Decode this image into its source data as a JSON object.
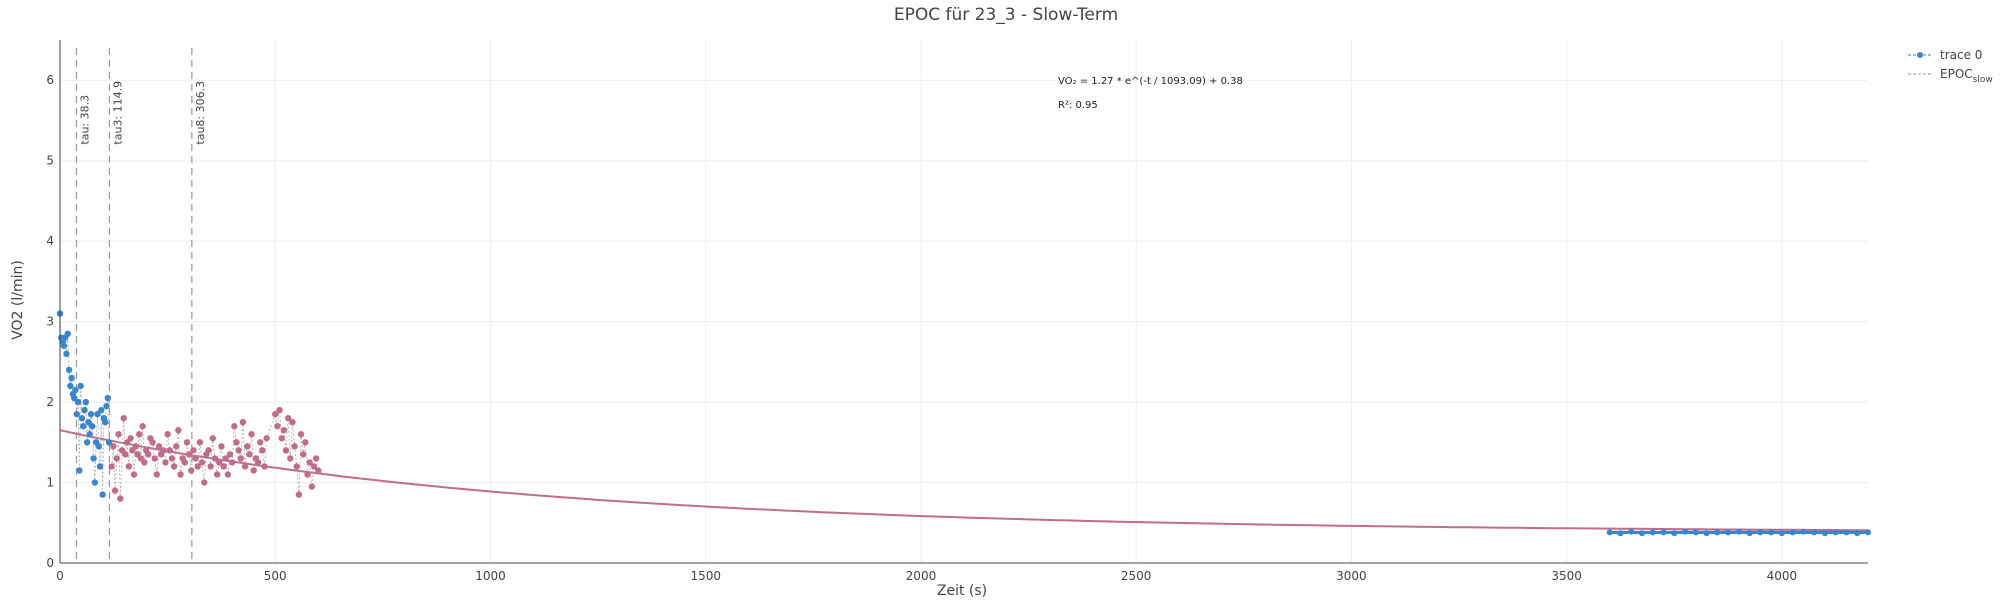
{
  "chart_data": {
    "type": "scatter",
    "title": "EPOC für 23_3 - Slow-Term",
    "xlabel": "Zeit (s)",
    "ylabel": "VO2 (l/min)",
    "xlim": [
      0,
      4200
    ],
    "ylim": [
      0,
      6.5
    ],
    "x_ticks": [
      0,
      500,
      1000,
      1500,
      2000,
      2500,
      3000,
      3500,
      4000
    ],
    "y_ticks": [
      0,
      1,
      2,
      3,
      4,
      5,
      6
    ],
    "grid": true,
    "legend_position": "top-right",
    "colors": {
      "trace0": "#3a86c8",
      "fit": "#c06c8c",
      "tau_line": "#999999"
    },
    "legend": {
      "trace0": "trace 0",
      "fit_main": "EPOC",
      "fit_sub": "slow"
    },
    "annotations": {
      "equation": "VO₂ = 1.27 * e^(-t / 1093.09) + 0.38",
      "r2": "R²: 0.95"
    },
    "tau_lines": [
      {
        "x": 38.3,
        "label": "tau: 38.3"
      },
      {
        "x": 114.9,
        "label": "tau3: 114.9"
      },
      {
        "x": 306.3,
        "label": "tau8: 306.3"
      }
    ],
    "fit": {
      "a": 1.27,
      "tau": 1093.09,
      "c": 0.38,
      "x_range": [
        0,
        4200
      ]
    },
    "series": [
      {
        "name": "trace 0",
        "x": [
          0,
          3,
          6,
          9,
          12,
          15,
          18,
          21,
          24,
          27,
          30,
          33,
          36,
          39,
          42,
          45,
          48,
          51,
          54,
          57,
          60,
          63,
          66,
          69,
          72,
          75,
          78,
          81,
          84,
          87,
          90,
          93,
          96,
          99,
          102,
          105,
          108,
          111,
          114
        ],
        "y": [
          3.1,
          2.8,
          2.75,
          2.7,
          2.8,
          2.6,
          2.85,
          2.4,
          2.2,
          2.3,
          2.1,
          2.05,
          2.15,
          1.85,
          2.0,
          1.15,
          2.2,
          1.8,
          1.7,
          1.9,
          2.0,
          1.5,
          1.75,
          1.6,
          1.85,
          1.7,
          1.3,
          1.0,
          1.5,
          1.85,
          1.45,
          1.2,
          1.9,
          0.85,
          1.8,
          1.75,
          1.95,
          2.05,
          1.5
        ]
      },
      {
        "name": "EPOC_slow points",
        "x": [
          120,
          124,
          128,
          132,
          136,
          140,
          144,
          148,
          152,
          156,
          160,
          164,
          168,
          172,
          176,
          180,
          184,
          188,
          192,
          196,
          200,
          205,
          210,
          215,
          220,
          225,
          230,
          235,
          240,
          245,
          250,
          255,
          260,
          265,
          270,
          275,
          280,
          285,
          290,
          295,
          300,
          305,
          310,
          315,
          320,
          325,
          330,
          335,
          340,
          345,
          350,
          355,
          360,
          365,
          370,
          375,
          380,
          385,
          390,
          395,
          400,
          405,
          410,
          415,
          420,
          425,
          430,
          435,
          440,
          445,
          450,
          455,
          460,
          465,
          470,
          475,
          480,
          500,
          505,
          510,
          515,
          520,
          525,
          530,
          535,
          540,
          545,
          550,
          555,
          560,
          565,
          570,
          575,
          580,
          585,
          590,
          595,
          600
        ],
        "y": [
          1.2,
          1.45,
          0.9,
          1.3,
          1.6,
          0.8,
          1.4,
          1.8,
          1.35,
          1.5,
          1.2,
          1.55,
          1.4,
          1.1,
          1.45,
          1.35,
          1.6,
          1.3,
          1.7,
          1.25,
          1.4,
          1.35,
          1.55,
          1.5,
          1.3,
          1.1,
          1.45,
          1.35,
          1.4,
          1.25,
          1.6,
          1.4,
          1.3,
          1.2,
          1.45,
          1.65,
          1.1,
          1.3,
          1.25,
          1.5,
          1.35,
          1.15,
          1.4,
          1.3,
          1.2,
          1.5,
          1.25,
          1.0,
          1.35,
          1.4,
          1.2,
          1.55,
          1.3,
          1.1,
          1.25,
          1.45,
          1.2,
          1.3,
          1.1,
          1.35,
          1.25,
          1.7,
          1.5,
          1.4,
          1.3,
          1.75,
          1.2,
          1.45,
          1.35,
          1.6,
          1.15,
          1.3,
          1.25,
          1.5,
          1.4,
          1.2,
          1.55,
          1.85,
          1.7,
          1.9,
          1.55,
          1.65,
          1.4,
          1.8,
          1.3,
          1.75,
          1.45,
          1.2,
          0.85,
          1.6,
          1.35,
          1.5,
          1.1,
          1.25,
          0.95,
          1.2,
          1.3,
          1.15
        ]
      },
      {
        "name": "trace 0 tail",
        "x": [
          3600,
          3625,
          3650,
          3675,
          3700,
          3725,
          3750,
          3775,
          3800,
          3825,
          3850,
          3875,
          3900,
          3925,
          3950,
          3975,
          4000,
          4025,
          4050,
          4075,
          4100,
          4125,
          4150,
          4175,
          4200
        ],
        "y": [
          0.38,
          0.37,
          0.39,
          0.37,
          0.38,
          0.38,
          0.37,
          0.39,
          0.38,
          0.37,
          0.38,
          0.38,
          0.39,
          0.37,
          0.38,
          0.38,
          0.37,
          0.38,
          0.39,
          0.38,
          0.37,
          0.38,
          0.38,
          0.37,
          0.38
        ]
      }
    ]
  }
}
